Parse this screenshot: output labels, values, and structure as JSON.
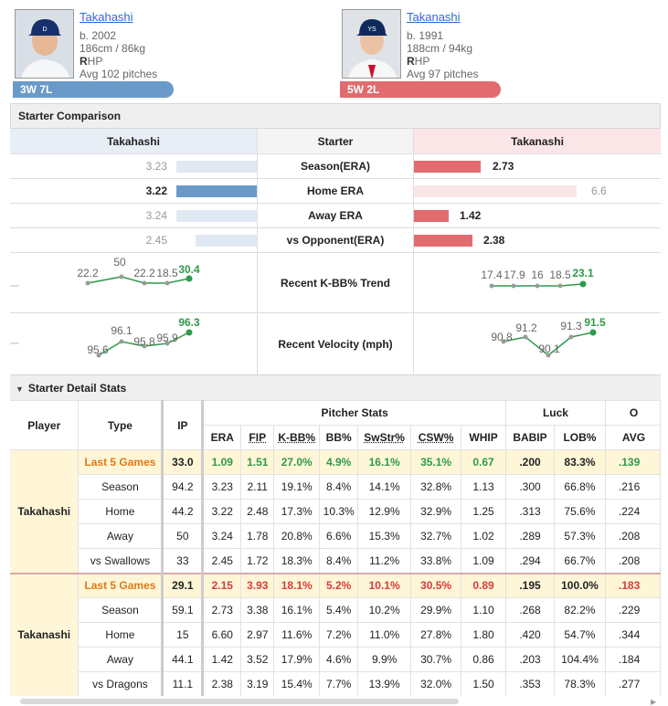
{
  "left": {
    "name": "Takahashi",
    "born": "b. 2002",
    "size": "186cm / 86kg",
    "throws_b": "R",
    "throws_rest": "HP",
    "avg_pitches": "Avg 102 pitches",
    "record": "3W 7L"
  },
  "right": {
    "name": "Takanashi",
    "born": "b. 1991",
    "size": "188cm / 94kg",
    "throws_b": "R",
    "throws_rest": "HP",
    "avg_pitches": "Avg 97 pitches",
    "record": "5W 2L"
  },
  "comparison": {
    "title": "Starter Comparison",
    "col_left": "Takahashi",
    "col_mid": "Starter",
    "col_right": "Takanashi",
    "rows": [
      {
        "label": "Season(ERA)",
        "left": "3.23",
        "right": "2.73"
      },
      {
        "label": "Home ERA",
        "left": "3.22",
        "right": "6.6"
      },
      {
        "label": "Away ERA",
        "left": "3.24",
        "right": "1.42"
      },
      {
        "label": "vs Opponent(ERA)",
        "left": "2.45",
        "right": "2.38"
      }
    ],
    "trend_kbb": {
      "label": "Recent K-BB% Trend",
      "left": [
        "22.2",
        "50",
        "22.2",
        "18.5",
        "30.4"
      ],
      "right": [
        "17.4",
        "17.9",
        "16",
        "18.5",
        "23.1"
      ]
    },
    "trend_velo": {
      "label": "Recent Velocity (mph)",
      "left": [
        "95.6",
        "96.1",
        "95.8",
        "95.9",
        "96.3"
      ],
      "right": [
        "90.8",
        "91.2",
        "90.1",
        "91.3",
        "91.5"
      ]
    }
  },
  "colors": {
    "blue_bar": "#6a9ac9",
    "blue_light": "#e0e9f3",
    "red_bar": "#e26b6f",
    "red_light": "#fbe6e7",
    "trend_green": "#2f9a4a",
    "trend_grey": "#9a9a9a"
  },
  "detail": {
    "title": "Starter Detail Stats",
    "h_player": "Player",
    "h_type": "Type",
    "h_ip": "IP",
    "h_pitcher_stats": "Pitcher Stats",
    "h_luck": "Luck",
    "h_o": "O",
    "cols": [
      "ERA",
      "FIP",
      "K-BB%",
      "BB%",
      "SwStr%",
      "CSW%",
      "WHIP",
      "BABIP",
      "LOB%",
      "AVG"
    ],
    "players": [
      {
        "name": "Takahashi",
        "rows": [
          {
            "type": "Last 5 Games",
            "ip": "33.0",
            "v": [
              "1.09",
              "1.51",
              "27.0%",
              "4.9%",
              "16.1%",
              "35.1%",
              "0.67",
              ".200",
              "83.3%",
              ".139"
            ]
          },
          {
            "type": "Season",
            "ip": "94.2",
            "v": [
              "3.23",
              "2.11",
              "19.1%",
              "8.4%",
              "14.1%",
              "32.8%",
              "1.13",
              ".300",
              "66.8%",
              ".216"
            ]
          },
          {
            "type": "Home",
            "ip": "44.2",
            "v": [
              "3.22",
              "2.48",
              "17.3%",
              "10.3%",
              "12.9%",
              "32.9%",
              "1.25",
              ".313",
              "75.6%",
              ".224"
            ]
          },
          {
            "type": "Away",
            "ip": "50",
            "v": [
              "3.24",
              "1.78",
              "20.8%",
              "6.6%",
              "15.3%",
              "32.7%",
              "1.02",
              ".289",
              "57.3%",
              ".208"
            ]
          },
          {
            "type": "vs Swallows",
            "ip": "33",
            "v": [
              "2.45",
              "1.72",
              "18.3%",
              "8.4%",
              "11.2%",
              "33.8%",
              "1.09",
              ".294",
              "66.7%",
              ".208"
            ]
          }
        ]
      },
      {
        "name": "Takanashi",
        "rows": [
          {
            "type": "Last 5 Games",
            "ip": "29.1",
            "v": [
              "2.15",
              "3.93",
              "18.1%",
              "5.2%",
              "10.1%",
              "30.5%",
              "0.89",
              ".195",
              "100.0%",
              ".183"
            ]
          },
          {
            "type": "Season",
            "ip": "59.1",
            "v": [
              "2.73",
              "3.38",
              "16.1%",
              "5.4%",
              "10.2%",
              "29.9%",
              "1.10",
              ".268",
              "82.2%",
              ".229"
            ]
          },
          {
            "type": "Home",
            "ip": "15",
            "v": [
              "6.60",
              "2.97",
              "11.6%",
              "7.2%",
              "11.0%",
              "27.8%",
              "1.80",
              ".420",
              "54.7%",
              ".344"
            ]
          },
          {
            "type": "Away",
            "ip": "44.1",
            "v": [
              "1.42",
              "3.52",
              "17.9%",
              "4.6%",
              "9.9%",
              "30.7%",
              "0.86",
              ".203",
              "104.4%",
              ".184"
            ]
          },
          {
            "type": "vs Dragons",
            "ip": "11.1",
            "v": [
              "2.38",
              "3.19",
              "15.4%",
              "7.7%",
              "13.9%",
              "32.0%",
              "1.50",
              ".353",
              "78.3%",
              ".277"
            ]
          }
        ]
      }
    ]
  }
}
